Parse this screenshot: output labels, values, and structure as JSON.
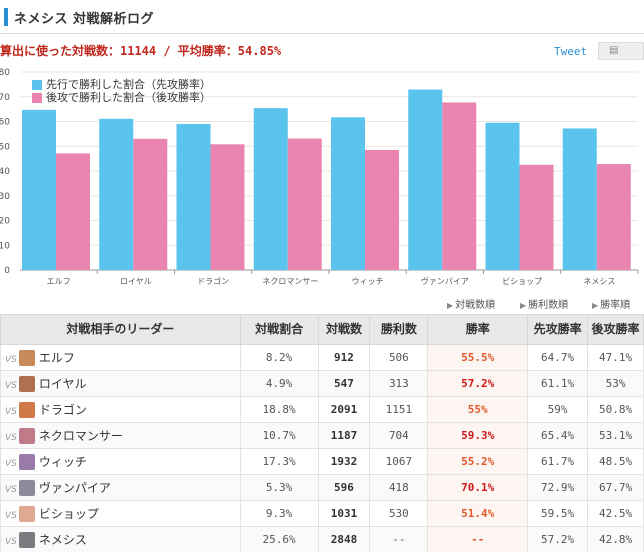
{
  "page": {
    "title": "ネメシス 対戦解析ログ",
    "summary": "算出に使った対戦数：11144 / 平均勝率：54.85%",
    "tweet_label": "Tweet",
    "share_icon": "document-icon"
  },
  "colors": {
    "first": "#5bc4ee",
    "second": "#e985b0",
    "rate": "#e05a2a"
  },
  "chart_data": {
    "type": "bar",
    "categories": [
      "エルフ",
      "ロイヤル",
      "ドラゴン",
      "ネクロマンサー",
      "ウィッチ",
      "ヴァンパイア",
      "ビショップ",
      "ネメシス"
    ],
    "series": [
      {
        "name": "先行で勝利した割合（先攻勝率）",
        "values": [
          64.7,
          61.1,
          59,
          65.4,
          61.7,
          72.9,
          59.5,
          57.2
        ]
      },
      {
        "name": "後攻で勝利した割合（後攻勝率）",
        "values": [
          47.1,
          53,
          50.8,
          53.1,
          48.5,
          67.7,
          42.5,
          42.8
        ]
      }
    ],
    "yticks": [
      "0",
      "10",
      "20",
      "30",
      "40",
      "50",
      "60",
      "70",
      "80"
    ],
    "ylim": [
      0,
      80
    ],
    "grid": true,
    "legend": "top-left"
  },
  "sort_links": [
    "対戦数順",
    "勝利数順",
    "勝率順"
  ],
  "table": {
    "headers": [
      "対戦相手のリーダー",
      "対戦割合",
      "対戦数",
      "勝利数",
      "勝率",
      "先攻勝率",
      "後攻勝率"
    ],
    "vs_label": "VS",
    "rows": [
      {
        "leader": "エルフ",
        "share": "8.2%",
        "battles": "912",
        "wins": "506",
        "rate": "55.5%",
        "first": "64.7%",
        "second": "47.1%",
        "avatar": "#c98a5a"
      },
      {
        "leader": "ロイヤル",
        "share": "4.9%",
        "battles": "547",
        "wins": "313",
        "rate": "57.2%",
        "first": "61.1%",
        "second": "53%",
        "avatar": "#b07050"
      },
      {
        "leader": "ドラゴン",
        "share": "18.8%",
        "battles": "2091",
        "wins": "1151",
        "rate": "55%",
        "first": "59%",
        "second": "50.8%",
        "avatar": "#d07848"
      },
      {
        "leader": "ネクロマンサー",
        "share": "10.7%",
        "battles": "1187",
        "wins": "704",
        "rate": "59.3%",
        "first": "65.4%",
        "second": "53.1%",
        "avatar": "#c07a8a"
      },
      {
        "leader": "ウィッチ",
        "share": "17.3%",
        "battles": "1932",
        "wins": "1067",
        "rate": "55.2%",
        "first": "61.7%",
        "second": "48.5%",
        "avatar": "#9a7aa8"
      },
      {
        "leader": "ヴァンパイア",
        "share": "5.3%",
        "battles": "596",
        "wins": "418",
        "rate": "70.1%",
        "first": "72.9%",
        "second": "67.7%",
        "avatar": "#8a8a9a"
      },
      {
        "leader": "ビショップ",
        "share": "9.3%",
        "battles": "1031",
        "wins": "530",
        "rate": "51.4%",
        "first": "59.5%",
        "second": "42.5%",
        "avatar": "#e0a890"
      },
      {
        "leader": "ネメシス",
        "share": "25.6%",
        "battles": "2848",
        "wins": "--",
        "rate": "--",
        "first": "57.2%",
        "second": "42.8%",
        "avatar": "#7a7a80"
      }
    ]
  }
}
